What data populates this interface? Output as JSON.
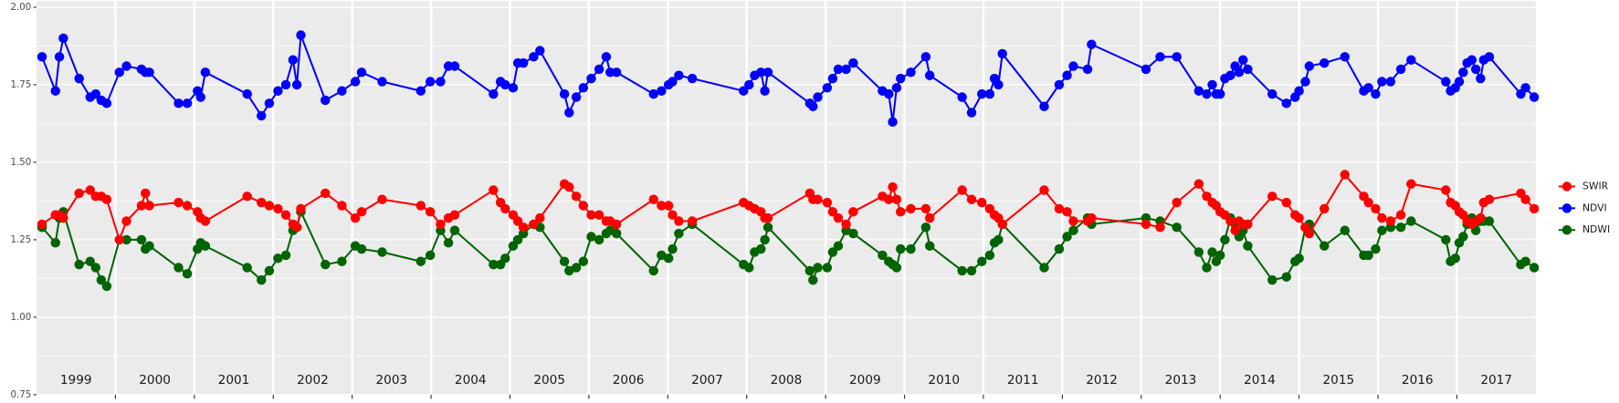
{
  "chart_data": {
    "type": "line",
    "x": [
      1999.07,
      1999.24,
      1999.29,
      1999.34,
      1999.54,
      1999.68,
      1999.75,
      1999.82,
      1999.89,
      2000.05,
      2000.14,
      2000.33,
      2000.38,
      2000.43,
      2000.8,
      2000.91,
      2001.04,
      2001.08,
      2001.14,
      2001.67,
      2001.85,
      2001.95,
      2002.06,
      2002.16,
      2002.25,
      2002.3,
      2002.35,
      2002.66,
      2002.87,
      2003.04,
      2003.12,
      2003.38,
      2003.87,
      2003.99,
      2004.12,
      2004.22,
      2004.3,
      2004.79,
      2004.88,
      2004.94,
      2005.04,
      2005.1,
      2005.17,
      2005.3,
      2005.38,
      2005.69,
      2005.75,
      2005.84,
      2005.93,
      2006.03,
      2006.13,
      2006.22,
      2006.27,
      2006.35,
      2006.82,
      2006.92,
      2007.01,
      2007.06,
      2007.14,
      2007.31,
      2007.96,
      2008.03,
      2008.1,
      2008.18,
      2008.23,
      2008.27,
      2008.8,
      2008.84,
      2008.9,
      2009.02,
      2009.09,
      2009.16,
      2009.26,
      2009.35,
      2009.72,
      2009.8,
      2009.85,
      2009.9,
      2009.95,
      2010.08,
      2010.27,
      2010.32,
      2010.73,
      2010.85,
      2010.98,
      2011.08,
      2011.14,
      2011.19,
      2011.24,
      2011.77,
      2011.96,
      2012.06,
      2012.14,
      2012.32,
      2012.37,
      2013.06,
      2013.24,
      2013.45,
      2013.73,
      2013.83,
      2013.9,
      2013.95,
      2014.0,
      2014.06,
      2014.13,
      2014.19,
      2014.24,
      2014.29,
      2014.35,
      2014.66,
      2014.84,
      2014.95,
      2015.0,
      2015.08,
      2015.13,
      2015.32,
      2015.58,
      2015.82,
      2015.88,
      2015.97,
      2016.05,
      2016.16,
      2016.29,
      2016.42,
      2016.86,
      2016.92,
      2016.98,
      2017.03,
      2017.08,
      2017.13,
      2017.19,
      2017.24,
      2017.3,
      2017.34,
      2017.41,
      2017.81,
      2017.87,
      2017.98
    ],
    "series": [
      {
        "name": "SWIR",
        "color": "#ff0000",
        "values": [
          1.3,
          1.33,
          1.33,
          1.32,
          1.4,
          1.41,
          1.39,
          1.39,
          1.38,
          1.25,
          1.31,
          1.36,
          1.4,
          1.36,
          1.37,
          1.36,
          1.34,
          1.32,
          1.31,
          1.39,
          1.37,
          1.36,
          1.35,
          1.33,
          1.3,
          1.29,
          1.35,
          1.4,
          1.36,
          1.32,
          1.34,
          1.38,
          1.36,
          1.34,
          1.3,
          1.32,
          1.33,
          1.41,
          1.37,
          1.35,
          1.33,
          1.31,
          1.29,
          1.3,
          1.32,
          1.43,
          1.42,
          1.39,
          1.36,
          1.33,
          1.33,
          1.31,
          1.31,
          1.3,
          1.38,
          1.36,
          1.36,
          1.33,
          1.31,
          1.31,
          1.37,
          1.36,
          1.35,
          1.34,
          1.32,
          1.32,
          1.4,
          1.38,
          1.38,
          1.37,
          1.34,
          1.32,
          1.3,
          1.34,
          1.39,
          1.38,
          1.42,
          1.38,
          1.34,
          1.35,
          1.35,
          1.32,
          1.41,
          1.38,
          1.37,
          1.35,
          1.33,
          1.32,
          1.3,
          1.41,
          1.35,
          1.34,
          1.31,
          1.31,
          1.32,
          1.3,
          1.29,
          1.37,
          1.43,
          1.39,
          1.37,
          1.36,
          1.34,
          1.33,
          1.31,
          1.28,
          1.31,
          1.3,
          1.3,
          1.39,
          1.37,
          1.33,
          1.32,
          1.29,
          1.27,
          1.35,
          1.46,
          1.39,
          1.37,
          1.35,
          1.32,
          1.31,
          1.33,
          1.43,
          1.41,
          1.37,
          1.36,
          1.34,
          1.33,
          1.31,
          1.3,
          1.31,
          1.32,
          1.37,
          1.38,
          1.4,
          1.38,
          1.35
        ]
      },
      {
        "name": "NDVI",
        "color": "#0000ff",
        "values": [
          1.84,
          1.73,
          1.84,
          1.9,
          1.77,
          1.71,
          1.72,
          1.7,
          1.69,
          1.79,
          1.81,
          1.8,
          1.79,
          1.79,
          1.69,
          1.69,
          1.73,
          1.71,
          1.79,
          1.72,
          1.65,
          1.69,
          1.73,
          1.75,
          1.83,
          1.75,
          1.91,
          1.7,
          1.73,
          1.76,
          1.79,
          1.76,
          1.73,
          1.76,
          1.76,
          1.81,
          1.81,
          1.72,
          1.76,
          1.75,
          1.74,
          1.82,
          1.82,
          1.84,
          1.86,
          1.72,
          1.66,
          1.71,
          1.74,
          1.77,
          1.8,
          1.84,
          1.79,
          1.79,
          1.72,
          1.73,
          1.75,
          1.76,
          1.78,
          1.77,
          1.73,
          1.75,
          1.78,
          1.79,
          1.73,
          1.79,
          1.69,
          1.68,
          1.71,
          1.74,
          1.77,
          1.8,
          1.8,
          1.82,
          1.73,
          1.72,
          1.63,
          1.74,
          1.77,
          1.79,
          1.84,
          1.78,
          1.71,
          1.66,
          1.72,
          1.72,
          1.77,
          1.75,
          1.85,
          1.68,
          1.75,
          1.78,
          1.81,
          1.8,
          1.88,
          1.8,
          1.84,
          1.84,
          1.73,
          1.72,
          1.75,
          1.72,
          1.72,
          1.77,
          1.78,
          1.81,
          1.79,
          1.83,
          1.8,
          1.72,
          1.69,
          1.71,
          1.73,
          1.76,
          1.81,
          1.82,
          1.84,
          1.73,
          1.74,
          1.72,
          1.76,
          1.76,
          1.8,
          1.83,
          1.76,
          1.73,
          1.74,
          1.76,
          1.79,
          1.82,
          1.83,
          1.8,
          1.77,
          1.83,
          1.84,
          1.72,
          1.74,
          1.71
        ]
      },
      {
        "name": "NDWI",
        "color": "#006400",
        "values": [
          1.29,
          1.24,
          1.32,
          1.34,
          1.17,
          1.18,
          1.16,
          1.12,
          1.1,
          1.25,
          1.25,
          1.25,
          1.22,
          1.23,
          1.16,
          1.14,
          1.22,
          1.24,
          1.23,
          1.16,
          1.12,
          1.15,
          1.19,
          1.2,
          1.28,
          1.29,
          1.34,
          1.17,
          1.18,
          1.23,
          1.22,
          1.21,
          1.18,
          1.2,
          1.28,
          1.24,
          1.28,
          1.17,
          1.17,
          1.19,
          1.23,
          1.25,
          1.27,
          1.3,
          1.29,
          1.18,
          1.15,
          1.16,
          1.18,
          1.26,
          1.25,
          1.27,
          1.28,
          1.27,
          1.15,
          1.2,
          1.19,
          1.22,
          1.27,
          1.3,
          1.17,
          1.16,
          1.21,
          1.22,
          1.25,
          1.29,
          1.15,
          1.12,
          1.16,
          1.16,
          1.21,
          1.23,
          1.28,
          1.27,
          1.2,
          1.18,
          1.17,
          1.16,
          1.22,
          1.22,
          1.29,
          1.23,
          1.15,
          1.15,
          1.18,
          1.2,
          1.24,
          1.25,
          1.3,
          1.16,
          1.22,
          1.26,
          1.28,
          1.32,
          1.3,
          1.32,
          1.31,
          1.29,
          1.21,
          1.16,
          1.21,
          1.18,
          1.2,
          1.25,
          1.32,
          1.3,
          1.26,
          1.28,
          1.23,
          1.12,
          1.13,
          1.18,
          1.19,
          1.29,
          1.3,
          1.23,
          1.28,
          1.2,
          1.2,
          1.22,
          1.28,
          1.29,
          1.29,
          1.31,
          1.25,
          1.18,
          1.19,
          1.24,
          1.26,
          1.3,
          1.32,
          1.28,
          1.31,
          1.31,
          1.31,
          1.17,
          1.18,
          1.16
        ]
      }
    ],
    "xlim": [
      1999,
      2018
    ],
    "xticks": [
      {
        "value": 1999.5,
        "label": "1999"
      },
      {
        "value": 2000.5,
        "label": "2000"
      },
      {
        "value": 2001.5,
        "label": "2001"
      },
      {
        "value": 2002.5,
        "label": "2002"
      },
      {
        "value": 2003.5,
        "label": "2003"
      },
      {
        "value": 2004.5,
        "label": "2004"
      },
      {
        "value": 2005.5,
        "label": "2005"
      },
      {
        "value": 2006.5,
        "label": "2006"
      },
      {
        "value": 2007.5,
        "label": "2007"
      },
      {
        "value": 2008.5,
        "label": "2008"
      },
      {
        "value": 2009.5,
        "label": "2009"
      },
      {
        "value": 2010.5,
        "label": "2010"
      },
      {
        "value": 2011.5,
        "label": "2011"
      },
      {
        "value": 2012.5,
        "label": "2012"
      },
      {
        "value": 2013.5,
        "label": "2013"
      },
      {
        "value": 2014.5,
        "label": "2014"
      },
      {
        "value": 2015.5,
        "label": "2015"
      },
      {
        "value": 2016.5,
        "label": "2016"
      },
      {
        "value": 2017.5,
        "label": "2017"
      }
    ],
    "ylim": [
      0.75,
      2.02
    ],
    "yticks": [
      {
        "value": 0.75,
        "label": "0.75"
      },
      {
        "value": 1.0,
        "label": "1.00"
      },
      {
        "value": 1.25,
        "label": "1.25"
      },
      {
        "value": 1.5,
        "label": "1.50"
      },
      {
        "value": 1.75,
        "label": "1.75"
      },
      {
        "value": 2.0,
        "label": "2.00"
      }
    ],
    "grid": true,
    "legend": "right"
  }
}
